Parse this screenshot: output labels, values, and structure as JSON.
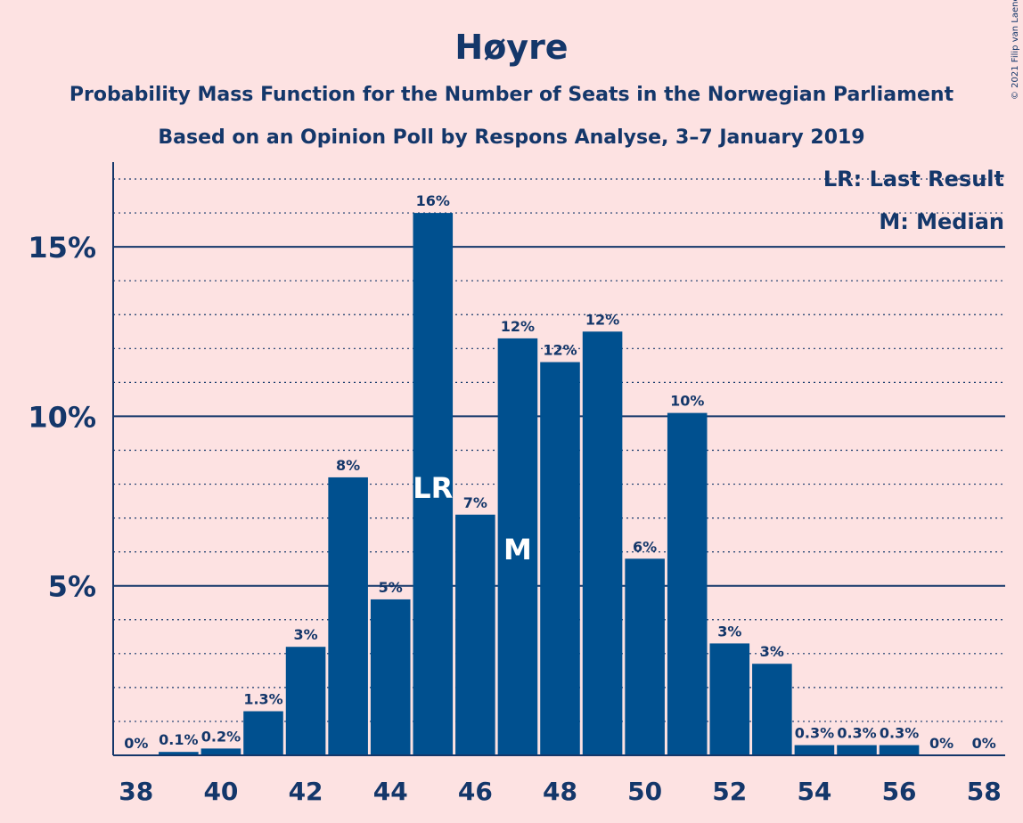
{
  "chart_data": {
    "type": "bar",
    "title": "Høyre",
    "subtitle1": "Probability Mass Function for the Number of Seats in the Norwegian Parliament",
    "subtitle2": "Based on an Opinion Poll by Respons Analyse, 3–7 January 2019",
    "copyright": "© 2021 Filip van Laenen",
    "categories": [
      38,
      39,
      40,
      41,
      42,
      43,
      44,
      45,
      46,
      47,
      48,
      49,
      50,
      51,
      52,
      53,
      54,
      55,
      56,
      57,
      58
    ],
    "values": [
      0,
      0.1,
      0.2,
      1.3,
      3.2,
      8.2,
      4.6,
      16.0,
      7.1,
      12.3,
      11.6,
      12.5,
      5.8,
      10.1,
      3.3,
      2.7,
      0.3,
      0.3,
      0.3,
      0,
      0
    ],
    "value_labels": [
      "0%",
      "0.1%",
      "0.2%",
      "1.3%",
      "3%",
      "8%",
      "5%",
      "16%",
      "7%",
      "12%",
      "12%",
      "12%",
      "6%",
      "10%",
      "3%",
      "3%",
      "0.3%",
      "0.3%",
      "0.3%",
      "0%",
      "0%"
    ],
    "x_tick_labels": [
      "38",
      "40",
      "42",
      "44",
      "46",
      "48",
      "50",
      "52",
      "54",
      "56",
      "58"
    ],
    "x_ticks": [
      38,
      40,
      42,
      44,
      46,
      48,
      50,
      52,
      54,
      56,
      58
    ],
    "y_ticks": [
      5,
      10,
      15
    ],
    "y_tick_labels": [
      "5%",
      "10%",
      "15%"
    ],
    "ylim": [
      0,
      17.5
    ],
    "last_result": {
      "seat": 45,
      "marker": "LR"
    },
    "median": {
      "seat": 47,
      "marker": "M"
    },
    "legend": {
      "lr": "LR: Last Result",
      "m": "M: Median",
      "placement": "top-right"
    },
    "bar_color": "#00508f",
    "background": "#fde2e2",
    "text_color": "#14376a"
  }
}
